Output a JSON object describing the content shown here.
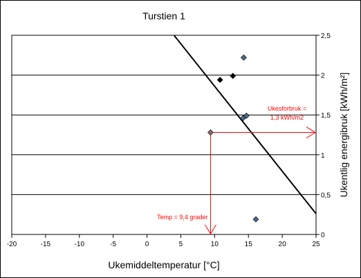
{
  "chart_data": {
    "type": "scatter",
    "title": "Turstien 1",
    "xlabel": "Ukemiddeltemperatur [°C]",
    "ylabel": "Ukentlig energibruk [kWh/m²]",
    "xlim": [
      -20,
      25
    ],
    "ylim": [
      0,
      2.5
    ],
    "xticks": [
      "-20",
      "-15",
      "-10",
      "-5",
      "0",
      "5",
      "10",
      "15",
      "20",
      "25"
    ],
    "yticks": [
      "0",
      "0,5",
      "1",
      "1,5",
      "2",
      "2,5"
    ],
    "grid": "horizontal",
    "y_axis_side": "right",
    "series": [
      {
        "color": "#4a6b8a",
        "points": [
          [
            14.3,
            2.22
          ],
          [
            14.7,
            1.49
          ],
          [
            14.2,
            1.46
          ],
          [
            16.1,
            0.19
          ]
        ]
      },
      {
        "color": "#000000",
        "points": [
          [
            10.8,
            1.94
          ],
          [
            12.7,
            1.99
          ]
        ]
      },
      {
        "color": "#8a6a70",
        "points": [
          [
            9.4,
            1.28
          ]
        ]
      }
    ],
    "trendline": {
      "x": [
        4.0,
        25.0
      ],
      "y": [
        2.5,
        0.26
      ],
      "color": "#000000"
    },
    "annotations": {
      "consumption": {
        "line1": "Ukesforbruk =",
        "line2": "1,3 kWh/m2",
        "color": "#ff0000",
        "y_value": 1.28
      },
      "temperature": {
        "text": "Temp = 9,4 grader",
        "color": "#ff0000",
        "x_value": 9.4
      }
    }
  }
}
